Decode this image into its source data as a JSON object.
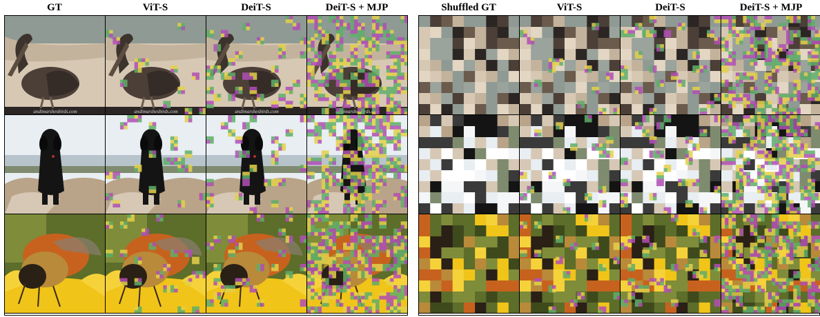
{
  "left_panel": {
    "columns": [
      "GT",
      "ViT-S",
      "DeiT-S",
      "DeiT-S + MJP"
    ],
    "rows": [
      {
        "subject": "pelican",
        "watermark": "andimarshesbirds.com"
      },
      {
        "subject": "dog"
      },
      {
        "subject": "bee"
      }
    ]
  },
  "right_panel": {
    "columns": [
      "Shuffled GT",
      "ViT-S",
      "DeiT-S",
      "DeiT-S + MJP"
    ],
    "rows": [
      {
        "subject": "pelican-shuffled"
      },
      {
        "subject": "dog-shuffled"
      },
      {
        "subject": "bee-shuffled"
      }
    ]
  },
  "colors": {
    "sand": "#c9b9a4",
    "pelican": "#4b3f37",
    "dog": "#141414",
    "rock": "#b9a489",
    "sky": "#e8eef2",
    "bee_yellow": "#f0c419",
    "bee_orange": "#c7621e",
    "noise_a": "#b04fb5",
    "noise_b": "#5fae6a",
    "noise_c": "#e3d04a"
  }
}
